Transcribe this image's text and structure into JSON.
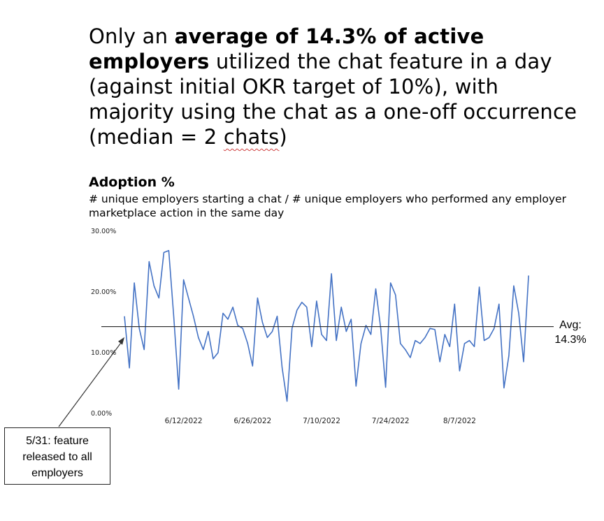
{
  "headline": {
    "part1": "Only an ",
    "bold1": "average of 14.3% of active employers",
    "part2": " utilized the chat feature in a day (against initial OKR target of 10%), with majority using the chat as a one-off occurrence (median = 2 ",
    "squiggle_word": "chats",
    "part3": ")"
  },
  "chart_data": {
    "type": "line",
    "title": "Adoption %",
    "subtitle": "# unique employers starting a chat / # unique employers who performed any employer marketplace action in the same day",
    "x_start": "2022-05-31",
    "x_ticks": [
      "6/12/2022",
      "6/26/2022",
      "7/10/2022",
      "7/24/2022",
      "8/7/2022"
    ],
    "y_ticks": [
      "0.00%",
      "10.00%",
      "20.00%",
      "30.00%"
    ],
    "ylim": [
      0,
      30
    ],
    "series": [
      {
        "name": "",
        "color": "#4472c4",
        "values": [
          16.0,
          7.5,
          21.5,
          14.0,
          10.5,
          25.0,
          21.0,
          19.0,
          26.5,
          26.8,
          16.0,
          4.0,
          22.0,
          19.0,
          16.0,
          12.5,
          10.5,
          13.5,
          9.0,
          10.0,
          16.5,
          15.5,
          17.5,
          14.5,
          14.0,
          11.5,
          7.8,
          19.0,
          15.0,
          12.5,
          13.5,
          16.0,
          7.5,
          2.0,
          14.0,
          17.0,
          18.3,
          17.5,
          11.0,
          18.5,
          13.0,
          12.0,
          23.0,
          12.0,
          17.5,
          13.5,
          15.5,
          4.5,
          11.5,
          14.5,
          13.0,
          20.5,
          14.0,
          4.3,
          21.5,
          19.5,
          11.5,
          10.5,
          9.2,
          12.0,
          11.5,
          12.5,
          14.0,
          13.8,
          8.5,
          13.0,
          11.0,
          18.0,
          7.0,
          11.5,
          12.0,
          11.0,
          20.8,
          12.0,
          12.5,
          14.0,
          18.0,
          4.2,
          9.5,
          21.0,
          16.5,
          8.5,
          22.7
        ]
      }
    ],
    "average": {
      "value": 14.3,
      "label": "Avg: 14.3%"
    },
    "annotation": {
      "text": "5/31: feature released to all employers"
    }
  }
}
